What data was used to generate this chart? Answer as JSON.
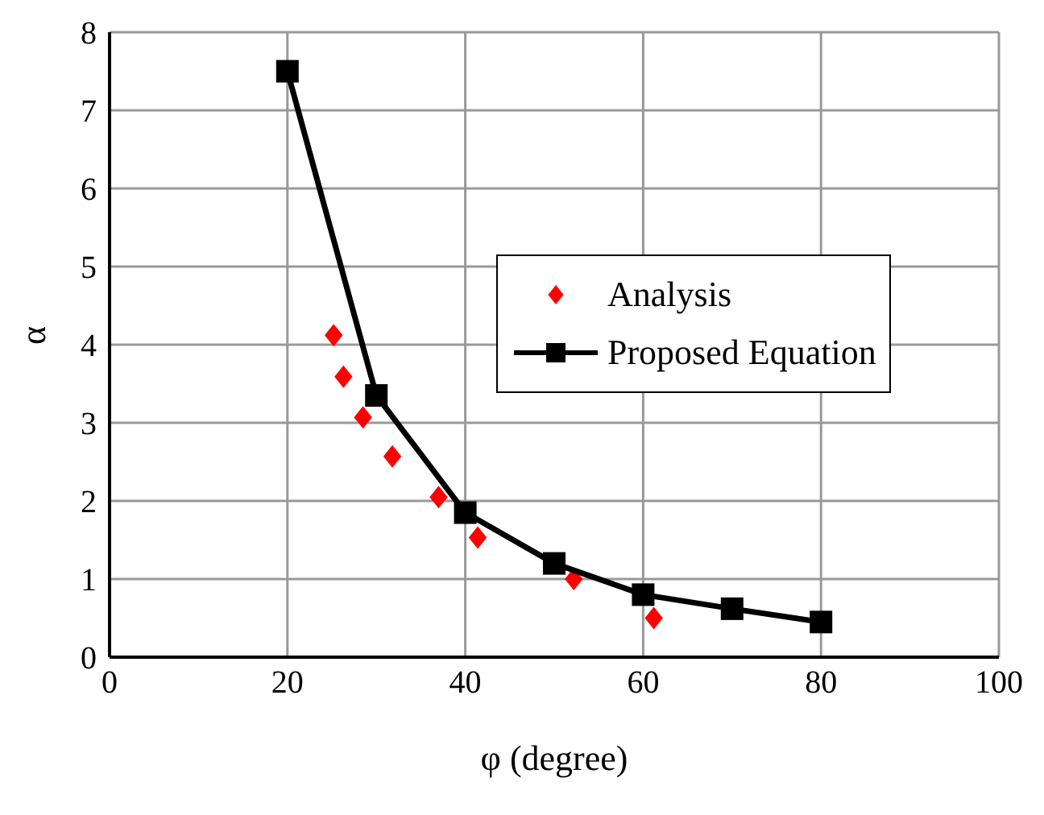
{
  "chart_data": {
    "type": "scatter",
    "xlabel": "φ (degree)",
    "ylabel": "α",
    "xlim": [
      0,
      100
    ],
    "xticks": [
      0,
      20,
      40,
      60,
      80,
      100
    ],
    "ylim": [
      0,
      8
    ],
    "yticks": [
      0,
      1,
      2,
      3,
      4,
      5,
      6,
      7,
      8
    ],
    "grid": true,
    "legend": "right",
    "series": [
      {
        "name": "Analysis",
        "marker": "diamond",
        "color": "#ff0000",
        "x": [
          25.2,
          26.3,
          28.5,
          31.8,
          37,
          41.4,
          52.2,
          61.2
        ],
        "values": [
          4.12,
          3.59,
          3.07,
          2.57,
          2.05,
          1.53,
          1.0,
          0.5
        ]
      },
      {
        "name": "Proposed Equation",
        "type": "line",
        "marker": "square",
        "line_style": "solid",
        "color": "#000000",
        "x": [
          20,
          30,
          40,
          50,
          60,
          70,
          80
        ],
        "values": [
          7.5,
          3.35,
          1.85,
          1.2,
          0.8,
          0.62,
          0.45
        ]
      }
    ]
  }
}
